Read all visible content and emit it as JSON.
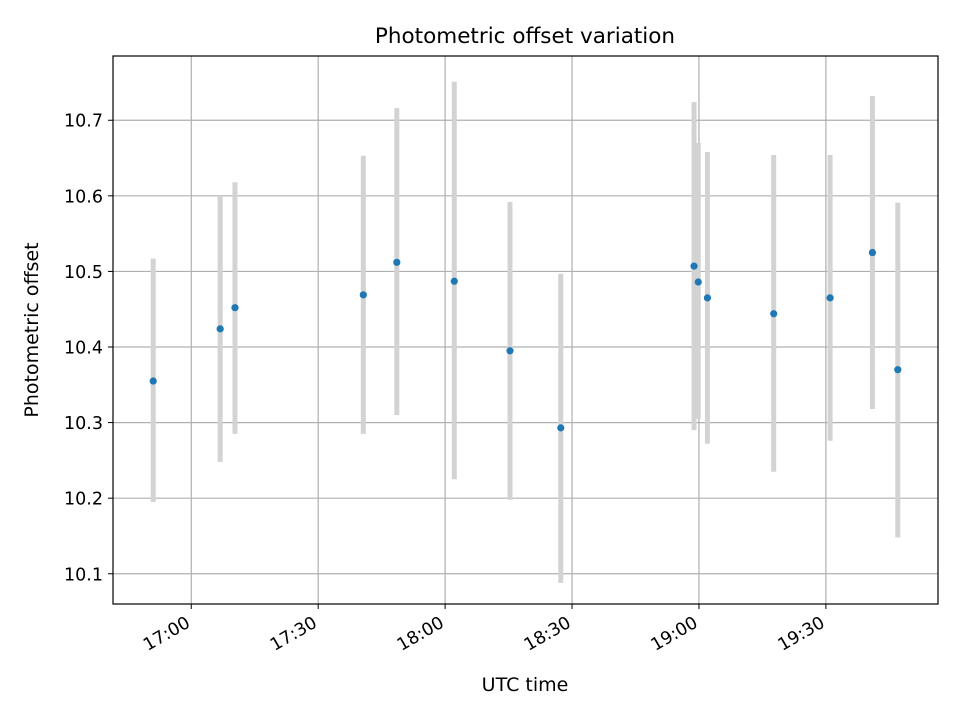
{
  "chart_data": {
    "type": "scatter",
    "title": "Photometric offset variation",
    "xlabel": "UTC time",
    "ylabel": "Photometric offset",
    "x_ticks": [
      "17:00",
      "17:30",
      "18:00",
      "18:30",
      "19:00",
      "19:30"
    ],
    "y_ticks": [
      "10.1",
      "10.2",
      "10.3",
      "10.4",
      "10.5",
      "10.6",
      "10.7"
    ],
    "xlim": [
      "16:41:30",
      "19:56:30"
    ],
    "ylim": [
      10.06,
      10.785
    ],
    "grid": true,
    "marker_color": "#1f77b4",
    "errorbar_color": "#d3d3d3",
    "points": [
      {
        "time": "16:51:00",
        "value": 10.355,
        "low": 10.195,
        "high": 10.517
      },
      {
        "time": "17:06:50",
        "value": 10.424,
        "low": 10.248,
        "high": 10.6
      },
      {
        "time": "17:10:20",
        "value": 10.452,
        "low": 10.285,
        "high": 10.618
      },
      {
        "time": "17:40:40",
        "value": 10.469,
        "low": 10.285,
        "high": 10.653
      },
      {
        "time": "17:48:35",
        "value": 10.512,
        "low": 10.31,
        "high": 10.716
      },
      {
        "time": "18:02:10",
        "value": 10.487,
        "low": 10.225,
        "high": 10.751
      },
      {
        "time": "18:15:20",
        "value": 10.395,
        "low": 10.198,
        "high": 10.592
      },
      {
        "time": "18:27:20",
        "value": 10.293,
        "low": 10.088,
        "high": 10.497
      },
      {
        "time": "18:58:50",
        "value": 10.507,
        "low": 10.29,
        "high": 10.724
      },
      {
        "time": "18:59:50",
        "value": 10.486,
        "low": 10.305,
        "high": 10.67
      },
      {
        "time": "19:02:00",
        "value": 10.465,
        "low": 10.272,
        "high": 10.658
      },
      {
        "time": "19:17:40",
        "value": 10.444,
        "low": 10.235,
        "high": 10.654
      },
      {
        "time": "19:31:00",
        "value": 10.465,
        "low": 10.276,
        "high": 10.654
      },
      {
        "time": "19:41:00",
        "value": 10.525,
        "low": 10.318,
        "high": 10.732
      },
      {
        "time": "19:47:00",
        "value": 10.37,
        "low": 10.148,
        "high": 10.591
      }
    ]
  }
}
